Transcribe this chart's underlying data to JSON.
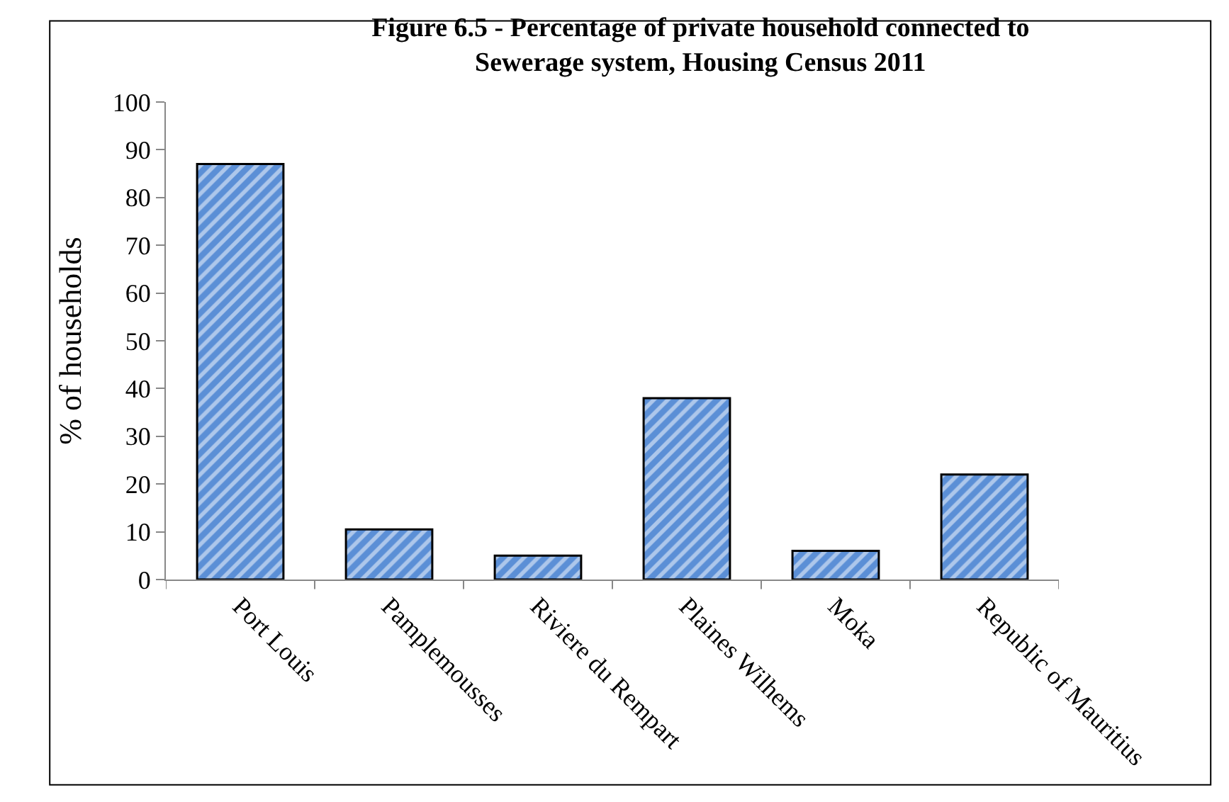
{
  "chart_data": {
    "type": "bar",
    "title": "Figure 6.5 - Percentage of private household connected to Sewerage system, Housing Census 2011",
    "ylabel": "% of households",
    "categories": [
      "Port Louis",
      "Pamplemousses",
      "Riviere du Rempart",
      "Plaines Wilhems",
      "Moka",
      "Republic of Mauritius"
    ],
    "values": [
      87,
      10.5,
      5,
      38,
      6,
      22
    ],
    "color": "#5b8fd6",
    "ylim": [
      0,
      100
    ],
    "yticks": [
      0,
      10,
      20,
      30,
      40,
      50,
      60,
      70,
      80,
      90,
      100
    ],
    "legend": false
  }
}
